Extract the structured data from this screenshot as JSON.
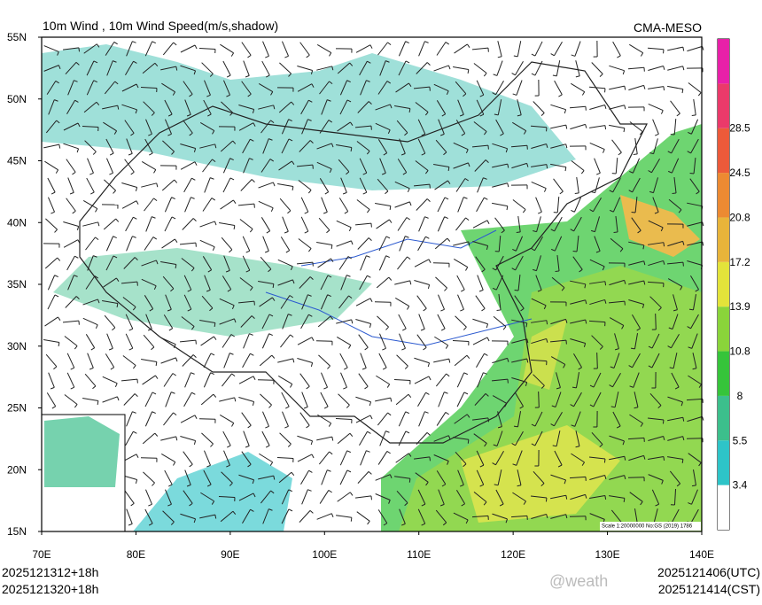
{
  "header": {
    "title": "10m Wind , 10m Wind Speed(m/s,shadow)",
    "source": "CMA-MESO"
  },
  "map": {
    "lat_labels": [
      "55N",
      "50N",
      "45N",
      "40N",
      "35N",
      "30N",
      "25N",
      "20N",
      "15N"
    ],
    "lon_labels": [
      "70E",
      "80E",
      "90E",
      "100E",
      "110E",
      "120E",
      "130E",
      "140E"
    ],
    "scale_note": "Scale 1:20000000 No:GS (2019) 1786"
  },
  "colorbar": {
    "ticks": [
      3.4,
      5.5,
      8,
      10.8,
      13.9,
      17.2,
      20.8,
      24.5,
      28.5
    ],
    "colors": [
      "#ffffff",
      "#2ec4c8",
      "#3cbf8c",
      "#36c43a",
      "#8ad43a",
      "#e3e33a",
      "#e8b43a",
      "#ec8a32",
      "#ec5a3a",
      "#ea3a6a",
      "#e820a8"
    ]
  },
  "footer": {
    "init_utc": "2025121312+18h",
    "init_cst": "2025121320+18h",
    "valid_utc": "2025121406(UTC)",
    "valid_cst": "2025121414(CST)",
    "watermark": "@weath"
  }
}
